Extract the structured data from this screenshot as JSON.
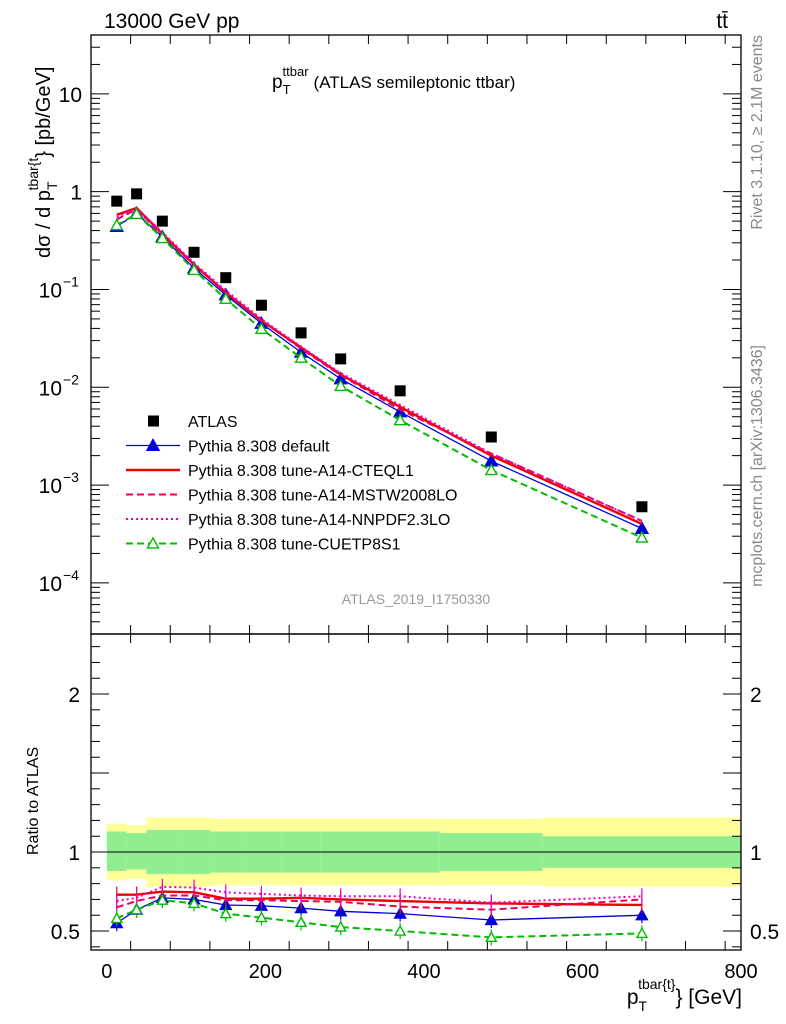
{
  "header": {
    "energy_label": "13000 GeV pp",
    "process_label": "tt̄",
    "rivet_label": "Rivet 3.1.10, ≥ 2.1M events",
    "source_label": "mcplots.cern.ch [arXiv:1306.3436]",
    "analysis_id": "ATLAS_2019_I1750330"
  },
  "chart_data": [
    {
      "type": "line",
      "title": "p_T^ttbar (ATLAS semileptonic ttbar)",
      "title_main": "p",
      "title_sub": "T",
      "title_sup": "ttbar",
      "title_rest": "(ATLAS semileptonic ttbar)",
      "ylabel": "dσ / d p_T^{tbar{t}} [pb/GeV]",
      "ylabel_main": "dσ / d p",
      "ylabel_sub": "T",
      "ylabel_sup": "tbar{t",
      "ylabel_rest": "} [pb/GeV]",
      "yscale": "log",
      "xlim": [
        -20,
        800
      ],
      "ylim": [
        3e-05,
        40
      ],
      "x_ticks": [
        0,
        200,
        400,
        600,
        800
      ],
      "y_ticks": [
        {
          "value": 10,
          "label": "10"
        },
        {
          "value": 1,
          "label": "1"
        },
        {
          "value": 0.1,
          "label": "10",
          "exp": "−1"
        },
        {
          "value": 0.01,
          "label": "10",
          "exp": "−2"
        },
        {
          "value": 0.001,
          "label": "10",
          "exp": "−3"
        },
        {
          "value": 0.0001,
          "label": "10",
          "exp": "−4"
        }
      ],
      "legend_position": "lower-left",
      "x": [
        12.5,
        37.5,
        70,
        110,
        150,
        195,
        245,
        295,
        370,
        485,
        675
      ],
      "series": [
        {
          "name": "ATLAS",
          "style": "data",
          "color": "#000000",
          "values": [
            0.8,
            0.95,
            0.5,
            0.24,
            0.132,
            0.069,
            0.036,
            0.0195,
            0.0092,
            0.0031,
            0.0006
          ]
        },
        {
          "name": "Pythia 8.308 default",
          "style": "solid-triangle",
          "color": "#0000dd",
          "values": [
            0.44,
            0.6,
            0.345,
            0.165,
            0.088,
            0.045,
            0.0228,
            0.0122,
            0.0056,
            0.00176,
            0.00036
          ]
        },
        {
          "name": "Pythia 8.308 tune-A14-CTEQL1",
          "style": "solid",
          "color": "#ee0000",
          "values": [
            0.58,
            0.68,
            0.37,
            0.18,
            0.093,
            0.048,
            0.0255,
            0.0135,
            0.0063,
            0.002,
            0.0004
          ]
        },
        {
          "name": "Pythia 8.308 tune-A14-MSTW2008LO",
          "style": "dashed",
          "color": "#ee0055",
          "values": [
            0.52,
            0.66,
            0.36,
            0.178,
            0.093,
            0.0485,
            0.0248,
            0.0133,
            0.0059,
            0.0021,
            0.00043
          ]
        },
        {
          "name": "Pythia 8.308 tune-A14-NNPDF2.3LO",
          "style": "dotted",
          "color": "#ee00cc",
          "values": [
            0.55,
            0.67,
            0.385,
            0.186,
            0.098,
            0.05,
            0.026,
            0.014,
            0.0066,
            0.0021,
            0.00043
          ]
        },
        {
          "name": "Pythia 8.308 tune-CUETP8S1",
          "style": "dashed-open-triangle",
          "color": "#00bb00",
          "values": [
            0.455,
            0.59,
            0.335,
            0.158,
            0.08,
            0.0395,
            0.02,
            0.0103,
            0.0046,
            0.00142,
            0.00029
          ]
        }
      ]
    },
    {
      "type": "line",
      "ylabel": "Ratio to ATLAS",
      "xlabel": "p_T^{tbar{t}} [GeV]",
      "xlabel_main": "p",
      "xlabel_sub": "T",
      "xlabel_sup": "tbar{t}",
      "xlabel_rest": "} [GeV]",
      "xlim": [
        -20,
        800
      ],
      "ylim": [
        0.38,
        2.38
      ],
      "x_ticks": [
        0,
        200,
        400,
        600,
        800
      ],
      "y_ticks": [
        {
          "value": 0.5,
          "label": "0.5"
        },
        {
          "value": 1,
          "label": "1"
        },
        {
          "value": 2,
          "label": "2"
        }
      ],
      "bands": [
        {
          "name": "stat",
          "color": "#90ee90",
          "bins": [
            [
              0,
              25,
              0.88,
              1.13
            ],
            [
              25,
              50,
              0.89,
              1.12
            ],
            [
              50,
              90,
              0.86,
              1.14
            ],
            [
              90,
              130,
              0.86,
              1.14
            ],
            [
              130,
              170,
              0.87,
              1.13
            ],
            [
              170,
              220,
              0.87,
              1.13
            ],
            [
              220,
              270,
              0.87,
              1.13
            ],
            [
              270,
              320,
              0.87,
              1.13
            ],
            [
              320,
              420,
              0.87,
              1.13
            ],
            [
              420,
              550,
              0.88,
              1.12
            ],
            [
              550,
              800,
              0.9,
              1.1
            ]
          ]
        },
        {
          "name": "syst",
          "color": "#ffff99",
          "bins": [
            [
              0,
              25,
              0.82,
              1.18
            ],
            [
              25,
              50,
              0.83,
              1.17
            ],
            [
              50,
              90,
              0.78,
              1.22
            ],
            [
              90,
              130,
              0.78,
              1.22
            ],
            [
              130,
              170,
              0.79,
              1.21
            ],
            [
              170,
              220,
              0.79,
              1.21
            ],
            [
              220,
              270,
              0.79,
              1.21
            ],
            [
              270,
              320,
              0.79,
              1.21
            ],
            [
              320,
              420,
              0.79,
              1.21
            ],
            [
              420,
              550,
              0.79,
              1.21
            ],
            [
              550,
              800,
              0.78,
              1.22
            ]
          ]
        }
      ],
      "x": [
        12.5,
        37.5,
        70,
        110,
        150,
        195,
        245,
        295,
        370,
        485,
        675
      ],
      "series": [
        {
          "name": "Pythia 8.308 default",
          "color": "#0000dd",
          "values": [
            0.55,
            0.635,
            0.71,
            0.7,
            0.665,
            0.66,
            0.645,
            0.625,
            0.61,
            0.57,
            0.6
          ]
        },
        {
          "name": "Pythia 8.308 tune-A14-CTEQL1",
          "color": "#ee0000",
          "values": [
            0.73,
            0.73,
            0.75,
            0.745,
            0.705,
            0.705,
            0.71,
            0.7,
            0.69,
            0.675,
            0.665
          ]
        },
        {
          "name": "Pythia 8.308 tune-A14-MSTW2008LO",
          "color": "#ee0055",
          "values": [
            0.65,
            0.69,
            0.725,
            0.725,
            0.695,
            0.695,
            0.69,
            0.685,
            0.655,
            0.635,
            0.7
          ]
        },
        {
          "name": "Pythia 8.308 tune-A14-NNPDF2.3LO",
          "color": "#ee00cc",
          "values": [
            0.69,
            0.71,
            0.78,
            0.775,
            0.745,
            0.735,
            0.725,
            0.72,
            0.72,
            0.68,
            0.72
          ]
        },
        {
          "name": "Pythia 8.308 tune-CUETP8S1",
          "color": "#00bb00",
          "values": [
            0.58,
            0.635,
            0.695,
            0.675,
            0.61,
            0.585,
            0.555,
            0.525,
            0.5,
            0.46,
            0.485
          ]
        }
      ]
    }
  ]
}
